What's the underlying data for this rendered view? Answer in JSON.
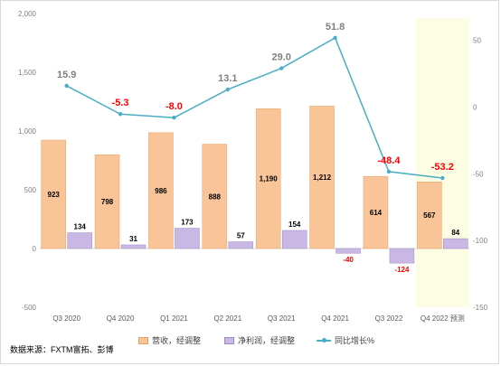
{
  "chart_data": {
    "type": "bar",
    "categories": [
      "Q3 2020",
      "Q4 2020",
      "Q1 2021",
      "Q2 2021",
      "Q3 2021",
      "Q4 2021",
      "Q3 2022",
      "Q4 2022 预测"
    ],
    "series": [
      {
        "name": "营收，经调整",
        "kind": "bar",
        "axis": "left",
        "color": "#f8c498",
        "values": [
          923,
          798,
          986,
          888,
          1190,
          1212,
          614,
          567
        ],
        "labels": [
          "923",
          "798",
          "986",
          "888",
          "1,190",
          "1,212",
          "614",
          "567"
        ]
      },
      {
        "name": "净利润，经调整",
        "kind": "bar",
        "axis": "left",
        "color": "#c9b8e4",
        "values": [
          134,
          31,
          173,
          57,
          154,
          -40,
          -124,
          84
        ],
        "labels": [
          "134",
          "31",
          "173",
          "57",
          "154",
          "-40",
          "-124",
          "84"
        ]
      },
      {
        "name": "同比增长%",
        "kind": "line",
        "axis": "right",
        "color": "#4bacc6",
        "values": [
          15.9,
          -5.3,
          -8.0,
          13.1,
          29.0,
          51.8,
          -48.4,
          -53.2
        ],
        "labels": [
          "15.9",
          "-5.3",
          "-8.0",
          "13.1",
          "29.0",
          "51.8",
          "-48.4",
          "-53.2"
        ]
      }
    ],
    "y_left": {
      "range": [
        -500,
        2000
      ],
      "ticks": [
        "-500",
        "0",
        "500",
        "1,000",
        "1,500",
        "2,000"
      ]
    },
    "y_right": {
      "range": [
        -150,
        70
      ],
      "ticks": [
        "-150",
        "-100",
        "-50",
        "0",
        "50"
      ]
    },
    "highlight_category": "Q4 2022 预测",
    "highlight_color": "#fdfde4",
    "negative_label_color": "#ff0000",
    "grid": false,
    "legend_position": "bottom"
  },
  "source_note": "数据来源：FXTM富拓、彭博"
}
